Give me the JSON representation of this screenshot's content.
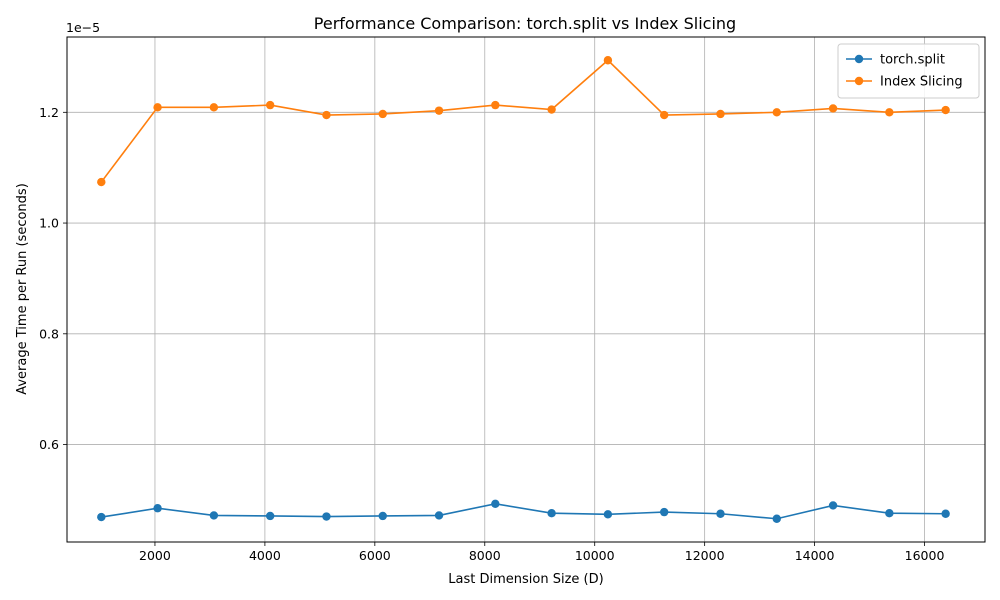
{
  "chart_data": {
    "type": "line",
    "title": "Performance Comparison: torch.split vs Index Slicing",
    "xlabel": "Last Dimension Size (D)",
    "ylabel": "Average Time per Run (seconds)",
    "y_offset_text": "1e−5",
    "y_multiplier": 1e-05,
    "xlim": [
      400,
      17100
    ],
    "ylim": [
      0.424,
      1.336
    ],
    "x_ticks": [
      2000,
      4000,
      6000,
      8000,
      10000,
      12000,
      14000,
      16000
    ],
    "x_tick_labels": [
      "2000",
      "4000",
      "6000",
      "8000",
      "10000",
      "12000",
      "14000",
      "16000"
    ],
    "y_ticks": [
      0.6,
      0.8,
      1.0,
      1.2
    ],
    "y_tick_labels": [
      "0.6",
      "0.8",
      "1.0",
      "1.2"
    ],
    "grid": true,
    "legend_position": "top-right",
    "x": [
      1024,
      2048,
      3072,
      4096,
      5120,
      6144,
      7168,
      8192,
      9216,
      10240,
      11264,
      12288,
      13312,
      14336,
      15360,
      16384
    ],
    "series": [
      {
        "name": "torch.split",
        "color": "#1f77b4",
        "marker": "circle",
        "values": [
          0.469,
          0.485,
          0.472,
          0.471,
          0.47,
          0.471,
          0.472,
          0.493,
          0.476,
          0.474,
          0.478,
          0.475,
          0.466,
          0.49,
          0.476,
          0.475
        ]
      },
      {
        "name": "Index Slicing",
        "color": "#ff7f0e",
        "marker": "circle",
        "values": [
          1.074,
          1.209,
          1.209,
          1.213,
          1.195,
          1.197,
          1.203,
          1.213,
          1.205,
          1.294,
          1.195,
          1.197,
          1.2,
          1.207,
          1.2,
          1.204
        ]
      }
    ]
  }
}
